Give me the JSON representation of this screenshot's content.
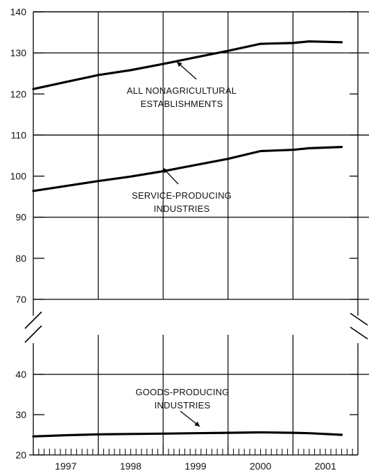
{
  "chart_data": {
    "type": "line",
    "title": "",
    "xlabel": "",
    "ylabel": "",
    "x_categories": [
      "1997",
      "1998",
      "1999",
      "2000",
      "2001"
    ],
    "x_range": [
      1997.0,
      2002.0
    ],
    "y_upper_range": [
      70,
      140
    ],
    "y_lower_range": [
      20,
      50
    ],
    "y_axis_break_between": [
      50,
      70
    ],
    "y_ticks_upper": [
      "70",
      "80",
      "90",
      "100",
      "110",
      "120",
      "130",
      "140"
    ],
    "y_ticks_lower": [
      "20",
      "30",
      "40"
    ],
    "grid": true,
    "series": [
      {
        "name": "ALL NONAGRICULTURAL ESTABLISHMENTS",
        "x": [
          1997.0,
          1997.5,
          1998.0,
          1998.5,
          1999.0,
          1999.5,
          2000.0,
          2000.5,
          2001.0,
          2001.25,
          2001.75
        ],
        "values": [
          121.2,
          122.9,
          124.6,
          125.8,
          127.3,
          128.9,
          130.5,
          132.2,
          132.4,
          132.8,
          132.6
        ]
      },
      {
        "name": "SERVICE-PRODUCING INDUSTRIES",
        "x": [
          1997.0,
          1997.5,
          1998.0,
          1998.5,
          1999.0,
          1999.5,
          2000.0,
          2000.5,
          2001.0,
          2001.25,
          2001.75
        ],
        "values": [
          96.4,
          97.6,
          98.8,
          99.9,
          101.2,
          102.7,
          104.2,
          106.1,
          106.4,
          106.8,
          107.1
        ]
      },
      {
        "name": "GOODS-PRODUCING INDUSTRIES",
        "x": [
          1997.0,
          1997.5,
          1998.0,
          1998.5,
          1999.0,
          1999.5,
          2000.0,
          2000.5,
          2001.0,
          2001.25,
          2001.75
        ],
        "values": [
          24.6,
          24.9,
          25.1,
          25.2,
          25.3,
          25.4,
          25.5,
          25.6,
          25.5,
          25.4,
          25.0
        ]
      }
    ],
    "annotations": [
      {
        "lines": [
          "ALL NONAGRICULTURAL",
          "ESTABLISHMENTS"
        ],
        "series": "ALL NONAGRICULTURAL ESTABLISHMENTS"
      },
      {
        "lines": [
          "SERVICE-PRODUCING",
          "INDUSTRIES"
        ],
        "series": "SERVICE-PRODUCING INDUSTRIES"
      },
      {
        "lines": [
          "GOODS-PRODUCING",
          "INDUSTRIES"
        ],
        "series": "GOODS-PRODUCING INDUSTRIES"
      }
    ],
    "line_color": "#000000"
  }
}
